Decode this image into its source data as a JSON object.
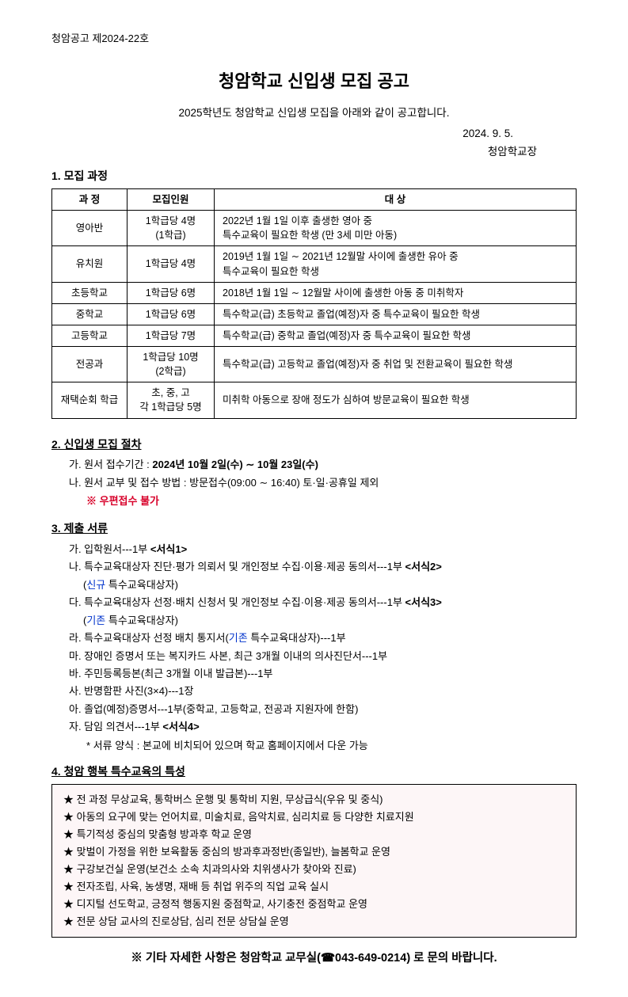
{
  "header": {
    "docNumber": "청암공고 제2024-22호",
    "title": "청암학교 신입생 모집 공고",
    "subtitle": "2025학년도 청암학교 신입생 모집을 아래와 같이 공고합니다.",
    "date": "2024. 9. 5.",
    "signer": "청암학교장"
  },
  "section1": {
    "heading": "1. 모집 과정",
    "table": {
      "headers": {
        "course": "과 정",
        "quota": "모집인원",
        "target": "대 상"
      },
      "rows": [
        {
          "course": "영아반",
          "quota": "1학급당 4명\n(1학급)",
          "target": "2022년 1월 1일 이후 출생한 영아 중\n특수교육이 필요한 학생 (만 3세 미만 아동)"
        },
        {
          "course": "유치원",
          "quota": "1학급당 4명",
          "target": "2019년 1월 1일 ∼ 2021년 12월말 사이에 출생한 유아 중\n특수교육이 필요한 학생"
        },
        {
          "course": "초등학교",
          "quota": "1학급당 6명",
          "target": "2018년 1월 1일 ∼ 12월말 사이에 출생한 아동 중 미취학자"
        },
        {
          "course": "중학교",
          "quota": "1학급당 6명",
          "target": "특수학교(급) 초등학교 졸업(예정)자 중 특수교육이 필요한 학생"
        },
        {
          "course": "고등학교",
          "quota": "1학급당 7명",
          "target": "특수학교(급) 중학교 졸업(예정)자 중 특수교육이 필요한 학생"
        },
        {
          "course": "전공과",
          "quota": "1학급당 10명\n(2학급)",
          "target": "특수학교(급) 고등학교 졸업(예정)자 중 취업 및 전환교육이 필요한 학생"
        },
        {
          "course": "재택순회 학급",
          "quota": "초, 중, 고\n각 1학급당 5명",
          "target": "미취학 아동으로 장애 정도가 심하여 방문교육이 필요한 학생"
        }
      ]
    }
  },
  "section2": {
    "heading": "2. 신입생 모집 절차",
    "lineA_prefix": "가. 원서 접수기간 : ",
    "lineA_bold": "2024년 10월 2일(수) ∼ 10월 23일(수)",
    "lineB": "나. 원서 교부 및 접수 방법 : 방문접수(09:00 ∼ 16:40) 토·일·공휴일 제외",
    "warn": "※ 우편접수 불가"
  },
  "section3": {
    "heading": "3. 제출 서류",
    "items": [
      {
        "main": "가. 입학원서---1부 ",
        "form": "<서식1>"
      },
      {
        "main": "나. 특수교육대상자 진단·평가 의뢰서 및 개인정보 수집·이용·제공 동의서---1부 ",
        "form": "<서식2>",
        "sub_pre": "(",
        "sub_blue": "신규",
        "sub_post": " 특수교육대상자)"
      },
      {
        "main": "다. 특수교육대상자 선정·배치 신청서 및 개인정보 수집·이용·제공 동의서---1부 ",
        "form": "<서식3>",
        "sub_pre": "(",
        "sub_blue": "기존",
        "sub_post": " 특수교육대상자)"
      },
      {
        "main_pre": "라. 특수교육대상자 선정 배치 통지서(",
        "main_blue": "기존",
        "main_post": " 특수교육대상자)---1부"
      },
      {
        "main": "마. 장애인 증명서 또는 복지카드 사본, 최근 3개월 이내의 의사진단서---1부"
      },
      {
        "main": "바. 주민등록등본(최근 3개월 이내 발급본)---1부"
      },
      {
        "main": "사. 반명함판 사진(3×4)---1장"
      },
      {
        "main": "아. 졸업(예정)증명서---1부(중학교, 고등학교, 전공과 지원자에 한함)"
      },
      {
        "main": "자. 담임 의견서---1부 ",
        "form": "<서식4>"
      }
    ],
    "note": "* 서류 양식 : 본교에 비치되어 있으며 학교 홈페이지에서 다운 가능"
  },
  "section4": {
    "heading": "4. 청암 행복 특수교육의 특성",
    "box_background": "#fdf6f7",
    "box_border": "#000000",
    "features": [
      "★ 전 과정 무상교육, 통학버스 운행 및 통학비 지원, 무상급식(우유 및 중식)",
      "★ 아동의 요구에 맞는 언어치료, 미술치료, 음악치료, 심리치료 등 다양한 치료지원",
      "★ 특기적성 중심의 맞춤형 방과후 학교 운영",
      "★ 맞벌이 가정을 위한 보육활동 중심의 방과후과정반(종일반), 늘봄학교 운영",
      "★ 구강보건실 운영(보건소 소속 치과의사와 치위생사가 찾아와 진료)",
      "★ 전자조립, 사육, 농생명, 재배 등 취업 위주의 직업 교육 실시",
      "★ 디지털 선도학교, 긍정적 행동지원 중점학교, 사기충전 중점학교 운영",
      "★ 전문 상담 교사의 진로상담, 심리 전문 상담실 운영"
    ]
  },
  "footer": {
    "prefix": "※ 기타 자세한 사항은 청암학교 교무실(",
    "phone_icon": "☎",
    "phone": "043-649-0214",
    "suffix": ") 로 문의 바랍니다."
  }
}
